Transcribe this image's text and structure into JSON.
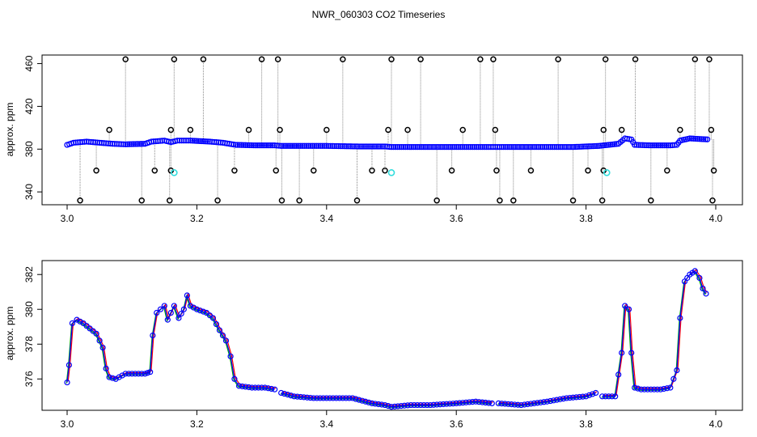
{
  "title": "NWR_060303  CO2 Timeseries",
  "colors": {
    "blue": "#0000ff",
    "black": "#000000",
    "cyan": "#33dddd",
    "red": "#ff0000",
    "green": "#00aa00",
    "gray": "#888888"
  },
  "chart_data": [
    {
      "type": "scatter",
      "ylabel": "approx. ppm",
      "xlim": [
        3.0,
        4.0
      ],
      "ylim": [
        328,
        468
      ],
      "x_ticks": [
        "3.0",
        "3.2",
        "3.4",
        "3.6",
        "3.8",
        "4.0"
      ],
      "y_ticks": [
        "340",
        "380",
        "420",
        "460"
      ],
      "main_series": [
        [
          3.0,
          384
        ],
        [
          3.01,
          386
        ],
        [
          3.03,
          387
        ],
        [
          3.05,
          386
        ],
        [
          3.07,
          385
        ],
        [
          3.09,
          384.5
        ],
        [
          3.12,
          385
        ],
        [
          3.13,
          387
        ],
        [
          3.15,
          388
        ],
        [
          3.16,
          386.5
        ],
        [
          3.17,
          388
        ],
        [
          3.19,
          388
        ],
        [
          3.22,
          387
        ],
        [
          3.24,
          386
        ],
        [
          3.26,
          384
        ],
        [
          3.29,
          383.5
        ],
        [
          3.32,
          383.5
        ],
        [
          3.33,
          383
        ],
        [
          3.36,
          383
        ],
        [
          3.4,
          383
        ],
        [
          3.45,
          382.5
        ],
        [
          3.49,
          382.5
        ],
        [
          3.5,
          382
        ],
        [
          3.55,
          382
        ],
        [
          3.6,
          382
        ],
        [
          3.65,
          382
        ],
        [
          3.67,
          382
        ],
        [
          3.72,
          382
        ],
        [
          3.78,
          382
        ],
        [
          3.82,
          383
        ],
        [
          3.85,
          385
        ],
        [
          3.86,
          390
        ],
        [
          3.87,
          389
        ],
        [
          3.875,
          384
        ],
        [
          3.9,
          383.5
        ],
        [
          3.93,
          383.5
        ],
        [
          3.94,
          384
        ],
        [
          3.945,
          388
        ],
        [
          3.96,
          390
        ],
        [
          3.99,
          389
        ]
      ],
      "outliers_high": [
        [
          3.065,
          398
        ],
        [
          3.09,
          464
        ],
        [
          3.16,
          398
        ],
        [
          3.165,
          464
        ],
        [
          3.19,
          398
        ],
        [
          3.21,
          464
        ],
        [
          3.28,
          398
        ],
        [
          3.3,
          464
        ],
        [
          3.325,
          464
        ],
        [
          3.328,
          398
        ],
        [
          3.4,
          398
        ],
        [
          3.425,
          464
        ],
        [
          3.495,
          398
        ],
        [
          3.5,
          464
        ],
        [
          3.525,
          398
        ],
        [
          3.545,
          464
        ],
        [
          3.61,
          398
        ],
        [
          3.637,
          464
        ],
        [
          3.657,
          464
        ],
        [
          3.66,
          398
        ],
        [
          3.757,
          464
        ],
        [
          3.827,
          398
        ],
        [
          3.83,
          464
        ],
        [
          3.855,
          398
        ],
        [
          3.876,
          464
        ],
        [
          3.945,
          398
        ],
        [
          3.968,
          464
        ],
        [
          3.99,
          464
        ],
        [
          3.993,
          398
        ]
      ],
      "outliers_low": [
        [
          3.02,
          332
        ],
        [
          3.045,
          360
        ],
        [
          3.115,
          332
        ],
        [
          3.135,
          360
        ],
        [
          3.158,
          332
        ],
        [
          3.16,
          360
        ],
        [
          3.232,
          332
        ],
        [
          3.258,
          360
        ],
        [
          3.322,
          360
        ],
        [
          3.331,
          332
        ],
        [
          3.358,
          332
        ],
        [
          3.38,
          360
        ],
        [
          3.447,
          332
        ],
        [
          3.47,
          360
        ],
        [
          3.49,
          360
        ],
        [
          3.57,
          332
        ],
        [
          3.593,
          360
        ],
        [
          3.662,
          360
        ],
        [
          3.667,
          332
        ],
        [
          3.688,
          332
        ],
        [
          3.715,
          360
        ],
        [
          3.78,
          332
        ],
        [
          3.803,
          360
        ],
        [
          3.825,
          332
        ],
        [
          3.827,
          360
        ],
        [
          3.9,
          332
        ],
        [
          3.925,
          360
        ],
        [
          3.995,
          332
        ],
        [
          3.997,
          360
        ]
      ],
      "cyan_points": [
        [
          3.165,
          358
        ],
        [
          3.5,
          358
        ],
        [
          3.832,
          358
        ]
      ]
    },
    {
      "type": "line",
      "ylabel": "approx. ppm",
      "xlim": [
        3.0,
        4.0
      ],
      "ylim": [
        374.2,
        382.8
      ],
      "x_ticks": [
        "3.0",
        "3.2",
        "3.4",
        "3.6",
        "3.8",
        "4.0"
      ],
      "y_ticks": [
        "376",
        "378",
        "380",
        "382"
      ],
      "series": [
        {
          "values": [
            [
              3.0,
              375.8
            ],
            [
              3.003,
              376.8
            ],
            [
              3.008,
              379.2
            ],
            [
              3.015,
              379.4
            ],
            [
              3.025,
              379.2
            ],
            [
              3.035,
              378.9
            ],
            [
              3.045,
              378.6
            ],
            [
              3.055,
              377.8
            ],
            [
              3.06,
              376.6
            ],
            [
              3.065,
              376.1
            ],
            [
              3.075,
              376.0
            ],
            [
              3.09,
              376.3
            ],
            [
              3.105,
              376.3
            ],
            [
              3.12,
              376.3
            ],
            [
              3.128,
              376.4
            ],
            [
              3.132,
              378.5
            ],
            [
              3.138,
              379.8
            ],
            [
              3.15,
              380.2
            ],
            [
              3.155,
              379.4
            ],
            [
              3.165,
              380.2
            ],
            [
              3.172,
              379.5
            ],
            [
              3.18,
              380.0
            ],
            [
              3.185,
              380.8
            ],
            [
              3.19,
              380.2
            ],
            [
              3.2,
              380.0
            ],
            [
              3.215,
              379.8
            ],
            [
              3.225,
              379.5
            ],
            [
              3.235,
              378.8
            ],
            [
              3.245,
              378.2
            ],
            [
              3.252,
              377.3
            ],
            [
              3.258,
              376.0
            ],
            [
              3.265,
              375.6
            ],
            [
              3.285,
              375.5
            ],
            [
              3.305,
              375.5
            ],
            [
              3.32,
              375.4
            ],
            [
              3.325,
              null
            ],
            [
              3.33,
              375.2
            ],
            [
              3.35,
              375.0
            ],
            [
              3.38,
              374.9
            ],
            [
              3.41,
              374.9
            ],
            [
              3.44,
              374.9
            ],
            [
              3.47,
              374.6
            ],
            [
              3.49,
              374.5
            ],
            [
              3.5,
              374.4
            ],
            [
              3.53,
              374.5
            ],
            [
              3.56,
              374.5
            ],
            [
              3.6,
              374.6
            ],
            [
              3.63,
              374.7
            ],
            [
              3.655,
              374.6
            ],
            [
              3.66,
              null
            ],
            [
              3.665,
              374.6
            ],
            [
              3.7,
              374.5
            ],
            [
              3.74,
              374.7
            ],
            [
              3.77,
              374.9
            ],
            [
              3.8,
              375.0
            ],
            [
              3.815,
              375.2
            ],
            [
              3.82,
              null
            ],
            [
              3.825,
              375.0
            ],
            [
              3.845,
              375.0
            ],
            [
              3.855,
              377.5
            ],
            [
              3.86,
              380.2
            ],
            [
              3.866,
              380.0
            ],
            [
              3.87,
              377.5
            ],
            [
              3.875,
              375.5
            ],
            [
              3.885,
              375.4
            ],
            [
              3.9,
              375.4
            ],
            [
              3.915,
              375.4
            ],
            [
              3.93,
              375.5
            ],
            [
              3.94,
              376.5
            ],
            [
              3.945,
              379.5
            ],
            [
              3.952,
              381.6
            ],
            [
              3.96,
              382.0
            ],
            [
              3.968,
              382.2
            ],
            [
              3.975,
              381.8
            ],
            [
              3.98,
              381.2
            ],
            [
              3.985,
              380.9
            ]
          ]
        }
      ]
    }
  ]
}
